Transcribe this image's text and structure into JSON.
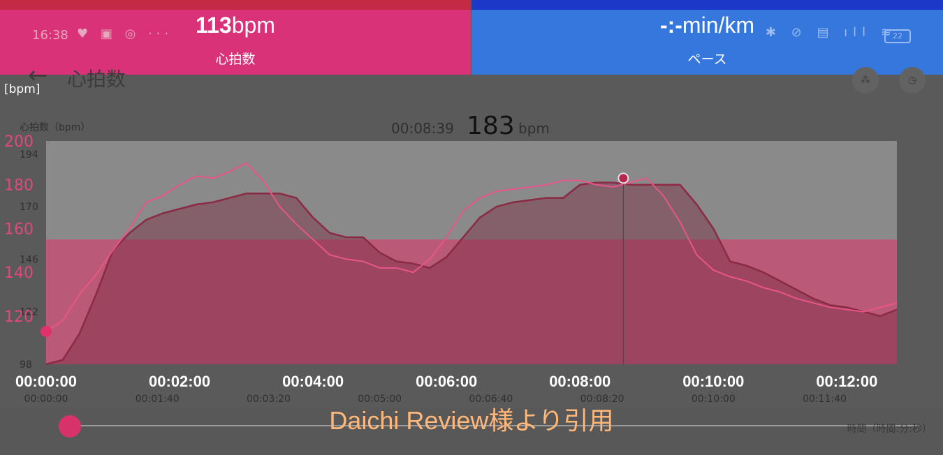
{
  "overlay": {
    "heart_rate": {
      "value": "113",
      "unit": "bpm",
      "label": "心拍数"
    },
    "pace": {
      "value": "-:-",
      "unit": "min/km",
      "label": "ペース"
    }
  },
  "status_bar": {
    "time": "16:38",
    "battery": "22"
  },
  "header": {
    "title": "心拍数"
  },
  "chart_header": {
    "unit_label": "[bpm]",
    "caption": "心拍数（bpm）",
    "selected_time": "00:08:39",
    "selected_value": "183",
    "selected_unit": "bpm"
  },
  "chart_data": {
    "type": "area",
    "x_unit": "seconds",
    "x_range": [
      0,
      765
    ],
    "ylim": [
      98,
      200
    ],
    "original_y_ticks": [
      "194",
      "170",
      "146",
      "122",
      "98"
    ],
    "overlay_y_ticks": [
      "200",
      "180",
      "160",
      "140",
      "120"
    ],
    "overlay_x_ticks": [
      "00:00:00",
      "00:02:00",
      "00:04:00",
      "00:06:00",
      "00:08:00",
      "00:10:00",
      "00:12:00"
    ],
    "original_x_ticks": [
      "00:00:00",
      "00:01:40",
      "00:03:20",
      "00:05:00",
      "00:06:40",
      "00:08:20",
      "00:10:00",
      "00:11:40"
    ],
    "zone_threshold": 155,
    "selected_point": {
      "x": 519,
      "y": 183
    },
    "series": [
      {
        "color": "#8a2a44",
        "x": [
          0,
          15,
          30,
          45,
          60,
          75,
          90,
          105,
          120,
          135,
          150,
          165,
          180,
          195,
          210,
          225,
          240,
          255,
          270,
          285,
          300,
          315,
          330,
          345,
          360,
          375,
          390,
          405,
          420,
          435,
          450,
          465,
          480,
          495,
          510,
          525,
          540,
          555,
          570,
          585,
          600,
          615,
          630,
          645,
          660,
          675,
          690,
          705,
          720,
          735,
          750,
          765
        ],
        "y": [
          98,
          100,
          112,
          130,
          150,
          158,
          164,
          167,
          169,
          171,
          172,
          174,
          176,
          176,
          176,
          174,
          165,
          158,
          156,
          156,
          149,
          145,
          144,
          142,
          147,
          156,
          165,
          170,
          172,
          173,
          174,
          174,
          180,
          181,
          181,
          180,
          180,
          180,
          180,
          171,
          160,
          145,
          143,
          140,
          136,
          132,
          128,
          125,
          124,
          122,
          120,
          123
        ]
      },
      {
        "color": "#e8558a",
        "x": [
          0,
          15,
          30,
          45,
          60,
          75,
          90,
          105,
          120,
          135,
          150,
          165,
          180,
          195,
          210,
          225,
          240,
          255,
          270,
          285,
          300,
          315,
          330,
          345,
          360,
          375,
          390,
          405,
          420,
          435,
          450,
          465,
          480,
          495,
          510,
          525,
          540,
          555,
          570,
          585,
          600,
          615,
          630,
          645,
          660,
          675,
          690,
          705,
          720,
          735,
          750,
          765
        ],
        "y": [
          113,
          118,
          130,
          139,
          150,
          160,
          172,
          175,
          180,
          184,
          183,
          186,
          190,
          182,
          170,
          162,
          155,
          148,
          146,
          145,
          142,
          142,
          140,
          146,
          156,
          168,
          174,
          177,
          178,
          179,
          180,
          182,
          182,
          180,
          179,
          181,
          183,
          175,
          163,
          148,
          141,
          138,
          136,
          133,
          131,
          128,
          126,
          124,
          123,
          122,
          124,
          126
        ]
      }
    ]
  },
  "watermark": "Daichi Review様より引用",
  "footer": {
    "time_axis_label": "時間（時間:分:秒）"
  }
}
